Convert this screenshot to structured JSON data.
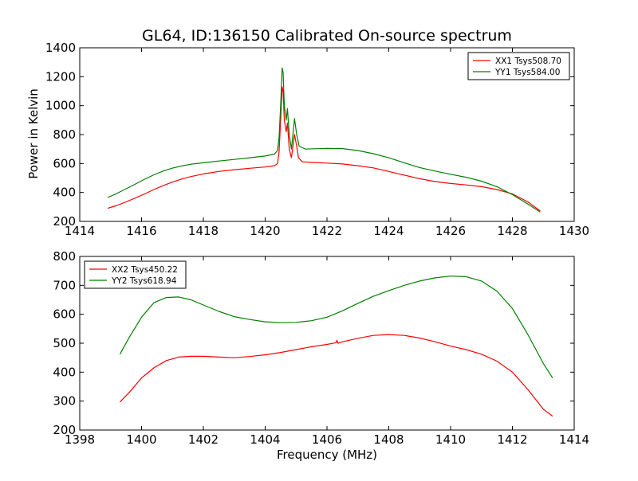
{
  "figure": {
    "title": "GL64, ID:136150 Calibrated On-source spectrum"
  },
  "chart_data": [
    {
      "type": "line",
      "title": "",
      "xlabel": "",
      "ylabel": "Power in Kelvin",
      "xlim": [
        1414,
        1430
      ],
      "ylim": [
        200,
        1400
      ],
      "xticks": [
        1414,
        1416,
        1418,
        1420,
        1422,
        1424,
        1426,
        1428,
        1430
      ],
      "yticks": [
        200,
        400,
        600,
        800,
        1000,
        1200,
        1400
      ],
      "legend_position": "top-right",
      "grid": false,
      "series": [
        {
          "name": "XX1 Tsys508.70",
          "color": "#ff0000",
          "points": [
            [
              1414.9,
              290
            ],
            [
              1415.2,
              310
            ],
            [
              1415.5,
              335
            ],
            [
              1415.8,
              362
            ],
            [
              1416.1,
              390
            ],
            [
              1416.4,
              420
            ],
            [
              1416.7,
              447
            ],
            [
              1417.0,
              472
            ],
            [
              1417.3,
              493
            ],
            [
              1417.6,
              510
            ],
            [
              1418.0,
              528
            ],
            [
              1418.5,
              545
            ],
            [
              1419.0,
              557
            ],
            [
              1419.5,
              567
            ],
            [
              1420.0,
              576
            ],
            [
              1420.3,
              585
            ],
            [
              1420.4,
              600
            ],
            [
              1420.45,
              680
            ],
            [
              1420.5,
              900
            ],
            [
              1420.55,
              1130
            ],
            [
              1420.58,
              1100
            ],
            [
              1420.62,
              900
            ],
            [
              1420.68,
              820
            ],
            [
              1420.72,
              880
            ],
            [
              1420.78,
              700
            ],
            [
              1420.85,
              640
            ],
            [
              1420.95,
              800
            ],
            [
              1421.02,
              720
            ],
            [
              1421.08,
              640
            ],
            [
              1421.2,
              612
            ],
            [
              1421.5,
              608
            ],
            [
              1422.0,
              603
            ],
            [
              1422.5,
              597
            ],
            [
              1423.0,
              585
            ],
            [
              1423.5,
              570
            ],
            [
              1424.0,
              545
            ],
            [
              1424.5,
              520
            ],
            [
              1425.0,
              495
            ],
            [
              1425.5,
              475
            ],
            [
              1426.0,
              462
            ],
            [
              1426.5,
              452
            ],
            [
              1427.0,
              440
            ],
            [
              1427.5,
              420
            ],
            [
              1428.0,
              390
            ],
            [
              1428.5,
              335
            ],
            [
              1428.9,
              272
            ]
          ]
        },
        {
          "name": "YY1 Tsys584.00",
          "color": "#008000",
          "points": [
            [
              1414.9,
              365
            ],
            [
              1415.2,
              393
            ],
            [
              1415.5,
              425
            ],
            [
              1415.8,
              458
            ],
            [
              1416.1,
              492
            ],
            [
              1416.4,
              522
            ],
            [
              1416.7,
              548
            ],
            [
              1417.0,
              568
            ],
            [
              1417.3,
              583
            ],
            [
              1417.6,
              595
            ],
            [
              1418.0,
              605
            ],
            [
              1418.5,
              617
            ],
            [
              1419.0,
              628
            ],
            [
              1419.5,
              640
            ],
            [
              1420.0,
              652
            ],
            [
              1420.3,
              665
            ],
            [
              1420.4,
              690
            ],
            [
              1420.45,
              780
            ],
            [
              1420.5,
              1000
            ],
            [
              1420.55,
              1260
            ],
            [
              1420.58,
              1230
            ],
            [
              1420.62,
              1000
            ],
            [
              1420.68,
              900
            ],
            [
              1420.72,
              980
            ],
            [
              1420.78,
              800
            ],
            [
              1420.85,
              700
            ],
            [
              1420.95,
              910
            ],
            [
              1421.02,
              800
            ],
            [
              1421.1,
              720
            ],
            [
              1421.3,
              700
            ],
            [
              1421.6,
              702
            ],
            [
              1422.0,
              705
            ],
            [
              1422.5,
              703
            ],
            [
              1423.0,
              690
            ],
            [
              1423.5,
              668
            ],
            [
              1424.0,
              640
            ],
            [
              1424.5,
              605
            ],
            [
              1425.0,
              572
            ],
            [
              1425.5,
              548
            ],
            [
              1426.0,
              526
            ],
            [
              1426.5,
              505
            ],
            [
              1427.0,
              478
            ],
            [
              1427.5,
              440
            ],
            [
              1428.0,
              385
            ],
            [
              1428.5,
              320
            ],
            [
              1428.9,
              265
            ]
          ]
        }
      ]
    },
    {
      "type": "line",
      "title": "",
      "xlabel": "Frequency (MHz)",
      "ylabel": "",
      "xlim": [
        1398,
        1414
      ],
      "ylim": [
        200,
        800
      ],
      "xticks": [
        1398,
        1400,
        1402,
        1404,
        1406,
        1408,
        1410,
        1412,
        1414
      ],
      "yticks": [
        200,
        300,
        400,
        500,
        600,
        700,
        800
      ],
      "legend_position": "top-left",
      "grid": false,
      "series": [
        {
          "name": "XX2 Tsys450.22",
          "color": "#ff0000",
          "points": [
            [
              1399.3,
              297
            ],
            [
              1399.6,
              330
            ],
            [
              1400.0,
              380
            ],
            [
              1400.4,
              415
            ],
            [
              1400.8,
              440
            ],
            [
              1401.2,
              452
            ],
            [
              1401.6,
              455
            ],
            [
              1402.0,
              455
            ],
            [
              1402.5,
              452
            ],
            [
              1403.0,
              450
            ],
            [
              1403.5,
              454
            ],
            [
              1404.0,
              460
            ],
            [
              1404.5,
              468
            ],
            [
              1405.0,
              478
            ],
            [
              1405.5,
              488
            ],
            [
              1406.0,
              496
            ],
            [
              1406.3,
              502
            ],
            [
              1406.32,
              510
            ],
            [
              1406.36,
              500
            ],
            [
              1406.5,
              505
            ],
            [
              1407.0,
              517
            ],
            [
              1407.5,
              527
            ],
            [
              1408.0,
              530
            ],
            [
              1408.5,
              527
            ],
            [
              1409.0,
              518
            ],
            [
              1409.5,
              505
            ],
            [
              1410.0,
              490
            ],
            [
              1410.5,
              478
            ],
            [
              1411.0,
              462
            ],
            [
              1411.5,
              438
            ],
            [
              1412.0,
              400
            ],
            [
              1412.5,
              340
            ],
            [
              1413.0,
              272
            ],
            [
              1413.3,
              248
            ]
          ]
        },
        {
          "name": "YY2 Tsys618.94",
          "color": "#008000",
          "points": [
            [
              1399.3,
              462
            ],
            [
              1399.6,
              520
            ],
            [
              1400.0,
              590
            ],
            [
              1400.4,
              640
            ],
            [
              1400.8,
              658
            ],
            [
              1401.2,
              660
            ],
            [
              1401.6,
              650
            ],
            [
              1402.0,
              632
            ],
            [
              1402.5,
              610
            ],
            [
              1403.0,
              592
            ],
            [
              1403.5,
              582
            ],
            [
              1404.0,
              574
            ],
            [
              1404.5,
              571
            ],
            [
              1405.0,
              572
            ],
            [
              1405.5,
              578
            ],
            [
              1406.0,
              590
            ],
            [
              1406.5,
              612
            ],
            [
              1407.0,
              638
            ],
            [
              1407.5,
              662
            ],
            [
              1408.0,
              682
            ],
            [
              1408.5,
              700
            ],
            [
              1409.0,
              715
            ],
            [
              1409.5,
              726
            ],
            [
              1410.0,
              732
            ],
            [
              1410.5,
              730
            ],
            [
              1411.0,
              715
            ],
            [
              1411.5,
              680
            ],
            [
              1412.0,
              620
            ],
            [
              1412.5,
              530
            ],
            [
              1413.0,
              430
            ],
            [
              1413.3,
              380
            ]
          ]
        }
      ]
    }
  ]
}
